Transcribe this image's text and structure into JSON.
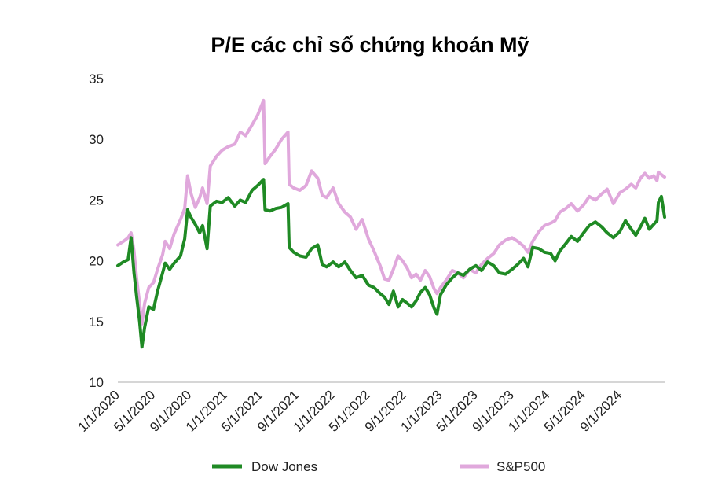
{
  "chart_data": {
    "type": "line",
    "title": "P/E các chỉ số chứng khoán Mỹ",
    "xlabel": "",
    "ylabel": "",
    "ylim": [
      10,
      35
    ],
    "y_ticks": [
      10,
      15,
      20,
      25,
      30,
      35
    ],
    "x_ticks": [
      "1/1/2020",
      "5/1/2020",
      "9/1/2020",
      "1/1/2021",
      "5/1/2021",
      "9/1/2021",
      "1/1/2022",
      "5/1/2022",
      "9/1/2022",
      "1/1/2023",
      "5/1/2023",
      "9/1/2023",
      "1/1/2024",
      "5/1/2024",
      "9/1/2024"
    ],
    "x_range": [
      "2020-01-01",
      "2025-01-31"
    ],
    "legend_position": "bottom",
    "grid": false,
    "series": [
      {
        "name": "Dow Jones",
        "color": "#1f8a24",
        "points": [
          [
            "2020-01-01",
            19.6
          ],
          [
            "2020-01-20",
            19.9
          ],
          [
            "2020-02-05",
            20.1
          ],
          [
            "2020-02-15",
            21.9
          ],
          [
            "2020-02-25",
            19.0
          ],
          [
            "2020-03-05",
            17.0
          ],
          [
            "2020-03-15",
            15.0
          ],
          [
            "2020-03-23",
            12.9
          ],
          [
            "2020-04-01",
            14.5
          ],
          [
            "2020-04-15",
            16.2
          ],
          [
            "2020-05-01",
            16.0
          ],
          [
            "2020-05-15",
            17.5
          ],
          [
            "2020-06-01",
            19.0
          ],
          [
            "2020-06-10",
            19.8
          ],
          [
            "2020-06-25",
            19.3
          ],
          [
            "2020-07-10",
            19.8
          ],
          [
            "2020-08-01",
            20.4
          ],
          [
            "2020-08-15",
            21.8
          ],
          [
            "2020-08-25",
            24.2
          ],
          [
            "2020-09-05",
            23.6
          ],
          [
            "2020-09-20",
            23.0
          ],
          [
            "2020-10-05",
            22.3
          ],
          [
            "2020-10-15",
            22.9
          ],
          [
            "2020-10-30",
            21.0
          ],
          [
            "2020-11-10",
            24.5
          ],
          [
            "2020-12-01",
            24.9
          ],
          [
            "2020-12-20",
            24.8
          ],
          [
            "2021-01-10",
            25.2
          ],
          [
            "2021-02-01",
            24.5
          ],
          [
            "2021-02-20",
            25.0
          ],
          [
            "2021-03-10",
            24.8
          ],
          [
            "2021-04-01",
            25.8
          ],
          [
            "2021-04-20",
            26.2
          ],
          [
            "2021-05-10",
            26.7
          ],
          [
            "2021-05-15",
            24.2
          ],
          [
            "2021-06-01",
            24.1
          ],
          [
            "2021-06-20",
            24.3
          ],
          [
            "2021-07-10",
            24.4
          ],
          [
            "2021-08-01",
            24.7
          ],
          [
            "2021-08-05",
            21.1
          ],
          [
            "2021-08-20",
            20.7
          ],
          [
            "2021-09-10",
            20.4
          ],
          [
            "2021-10-01",
            20.3
          ],
          [
            "2021-10-20",
            21.0
          ],
          [
            "2021-11-10",
            21.3
          ],
          [
            "2021-11-25",
            19.7
          ],
          [
            "2021-12-10",
            19.5
          ],
          [
            "2022-01-01",
            19.9
          ],
          [
            "2022-01-20",
            19.5
          ],
          [
            "2022-02-10",
            19.9
          ],
          [
            "2022-03-01",
            19.2
          ],
          [
            "2022-03-20",
            18.6
          ],
          [
            "2022-04-10",
            18.8
          ],
          [
            "2022-05-01",
            18.0
          ],
          [
            "2022-05-20",
            17.8
          ],
          [
            "2022-06-10",
            17.3
          ],
          [
            "2022-06-25",
            17.0
          ],
          [
            "2022-07-10",
            16.4
          ],
          [
            "2022-07-25",
            17.5
          ],
          [
            "2022-08-10",
            16.2
          ],
          [
            "2022-08-25",
            16.8
          ],
          [
            "2022-09-10",
            16.5
          ],
          [
            "2022-09-25",
            16.2
          ],
          [
            "2022-10-10",
            16.7
          ],
          [
            "2022-10-25",
            17.4
          ],
          [
            "2022-11-10",
            17.8
          ],
          [
            "2022-11-25",
            17.2
          ],
          [
            "2022-12-10",
            16.1
          ],
          [
            "2022-12-20",
            15.6
          ],
          [
            "2023-01-01",
            17.2
          ],
          [
            "2023-01-20",
            18.0
          ],
          [
            "2023-02-10",
            18.6
          ],
          [
            "2023-03-01",
            19.0
          ],
          [
            "2023-03-20",
            18.8
          ],
          [
            "2023-04-10",
            19.3
          ],
          [
            "2023-05-01",
            19.6
          ],
          [
            "2023-05-20",
            19.2
          ],
          [
            "2023-06-10",
            19.9
          ],
          [
            "2023-07-01",
            19.6
          ],
          [
            "2023-07-20",
            19.0
          ],
          [
            "2023-08-10",
            18.9
          ],
          [
            "2023-09-01",
            19.3
          ],
          [
            "2023-09-20",
            19.7
          ],
          [
            "2023-10-10",
            20.2
          ],
          [
            "2023-10-25",
            19.5
          ],
          [
            "2023-11-10",
            21.1
          ],
          [
            "2023-12-01",
            21.0
          ],
          [
            "2023-12-20",
            20.7
          ],
          [
            "2024-01-10",
            20.6
          ],
          [
            "2024-01-25",
            20.0
          ],
          [
            "2024-02-10",
            20.8
          ],
          [
            "2024-03-01",
            21.4
          ],
          [
            "2024-03-20",
            22.0
          ],
          [
            "2024-04-10",
            21.6
          ],
          [
            "2024-05-01",
            22.3
          ],
          [
            "2024-05-20",
            22.9
          ],
          [
            "2024-06-10",
            23.2
          ],
          [
            "2024-07-01",
            22.8
          ],
          [
            "2024-07-20",
            22.3
          ],
          [
            "2024-08-10",
            21.9
          ],
          [
            "2024-09-01",
            22.4
          ],
          [
            "2024-09-20",
            23.3
          ],
          [
            "2024-10-10",
            22.6
          ],
          [
            "2024-10-25",
            22.1
          ],
          [
            "2024-11-10",
            22.8
          ],
          [
            "2024-11-25",
            23.5
          ],
          [
            "2024-12-10",
            22.6
          ],
          [
            "2024-12-25",
            23.0
          ],
          [
            "2025-01-05",
            23.3
          ],
          [
            "2025-01-10",
            24.8
          ],
          [
            "2025-01-20",
            25.3
          ],
          [
            "2025-01-31",
            23.6
          ]
        ]
      },
      {
        "name": "S&P500",
        "color": "#e0a8dc",
        "points": [
          [
            "2020-01-01",
            21.3
          ],
          [
            "2020-01-20",
            21.6
          ],
          [
            "2020-02-05",
            21.9
          ],
          [
            "2020-02-15",
            22.3
          ],
          [
            "2020-02-25",
            20.8
          ],
          [
            "2020-03-05",
            18.5
          ],
          [
            "2020-03-15",
            16.5
          ],
          [
            "2020-03-23",
            14.8
          ],
          [
            "2020-04-01",
            16.5
          ],
          [
            "2020-04-15",
            17.8
          ],
          [
            "2020-05-01",
            18.2
          ],
          [
            "2020-05-15",
            19.3
          ],
          [
            "2020-06-01",
            20.5
          ],
          [
            "2020-06-10",
            21.6
          ],
          [
            "2020-06-25",
            21.0
          ],
          [
            "2020-07-10",
            22.2
          ],
          [
            "2020-08-01",
            23.4
          ],
          [
            "2020-08-15",
            24.3
          ],
          [
            "2020-08-25",
            27.0
          ],
          [
            "2020-09-05",
            25.6
          ],
          [
            "2020-09-20",
            24.4
          ],
          [
            "2020-10-05",
            25.2
          ],
          [
            "2020-10-15",
            26.0
          ],
          [
            "2020-10-30",
            24.7
          ],
          [
            "2020-11-10",
            27.8
          ],
          [
            "2020-12-01",
            28.6
          ],
          [
            "2020-12-20",
            29.1
          ],
          [
            "2021-01-10",
            29.4
          ],
          [
            "2021-02-01",
            29.6
          ],
          [
            "2021-02-20",
            30.6
          ],
          [
            "2021-03-10",
            30.3
          ],
          [
            "2021-04-01",
            31.2
          ],
          [
            "2021-04-20",
            32.0
          ],
          [
            "2021-05-10",
            33.2
          ],
          [
            "2021-05-15",
            28.0
          ],
          [
            "2021-06-01",
            28.6
          ],
          [
            "2021-06-20",
            29.2
          ],
          [
            "2021-07-10",
            30.0
          ],
          [
            "2021-08-01",
            30.6
          ],
          [
            "2021-08-05",
            26.3
          ],
          [
            "2021-08-20",
            26.0
          ],
          [
            "2021-09-10",
            25.8
          ],
          [
            "2021-10-01",
            26.2
          ],
          [
            "2021-10-20",
            27.4
          ],
          [
            "2021-11-10",
            26.8
          ],
          [
            "2021-11-25",
            25.4
          ],
          [
            "2021-12-10",
            25.2
          ],
          [
            "2022-01-01",
            26.0
          ],
          [
            "2022-01-20",
            24.7
          ],
          [
            "2022-02-10",
            24.0
          ],
          [
            "2022-03-01",
            23.6
          ],
          [
            "2022-03-20",
            22.6
          ],
          [
            "2022-04-10",
            23.4
          ],
          [
            "2022-05-01",
            21.8
          ],
          [
            "2022-05-20",
            20.8
          ],
          [
            "2022-06-10",
            19.6
          ],
          [
            "2022-06-25",
            18.5
          ],
          [
            "2022-07-10",
            18.4
          ],
          [
            "2022-07-25",
            19.3
          ],
          [
            "2022-08-10",
            20.4
          ],
          [
            "2022-08-25",
            20.0
          ],
          [
            "2022-09-10",
            19.4
          ],
          [
            "2022-09-25",
            18.6
          ],
          [
            "2022-10-10",
            18.9
          ],
          [
            "2022-10-25",
            18.4
          ],
          [
            "2022-11-10",
            19.2
          ],
          [
            "2022-11-25",
            18.7
          ],
          [
            "2022-12-10",
            17.7
          ],
          [
            "2022-12-20",
            17.3
          ],
          [
            "2023-01-01",
            17.8
          ],
          [
            "2023-01-20",
            18.4
          ],
          [
            "2023-02-10",
            19.2
          ],
          [
            "2023-03-01",
            19.0
          ],
          [
            "2023-03-20",
            18.6
          ],
          [
            "2023-04-10",
            19.3
          ],
          [
            "2023-05-01",
            19.0
          ],
          [
            "2023-05-20",
            19.7
          ],
          [
            "2023-06-10",
            20.2
          ],
          [
            "2023-07-01",
            20.6
          ],
          [
            "2023-07-20",
            21.3
          ],
          [
            "2023-08-10",
            21.7
          ],
          [
            "2023-09-01",
            21.9
          ],
          [
            "2023-09-20",
            21.6
          ],
          [
            "2023-10-10",
            21.2
          ],
          [
            "2023-10-25",
            20.7
          ],
          [
            "2023-11-10",
            21.6
          ],
          [
            "2023-12-01",
            22.4
          ],
          [
            "2023-12-20",
            22.9
          ],
          [
            "2024-01-10",
            23.1
          ],
          [
            "2024-01-25",
            23.3
          ],
          [
            "2024-02-10",
            24.0
          ],
          [
            "2024-03-01",
            24.3
          ],
          [
            "2024-03-20",
            24.7
          ],
          [
            "2024-04-10",
            24.1
          ],
          [
            "2024-05-01",
            24.6
          ],
          [
            "2024-05-20",
            25.3
          ],
          [
            "2024-06-10",
            25.0
          ],
          [
            "2024-07-01",
            25.5
          ],
          [
            "2024-07-20",
            25.9
          ],
          [
            "2024-08-10",
            24.7
          ],
          [
            "2024-09-01",
            25.6
          ],
          [
            "2024-09-20",
            25.9
          ],
          [
            "2024-10-10",
            26.3
          ],
          [
            "2024-10-25",
            26.0
          ],
          [
            "2024-11-10",
            26.8
          ],
          [
            "2024-11-25",
            27.2
          ],
          [
            "2024-12-10",
            26.8
          ],
          [
            "2024-12-25",
            27.0
          ],
          [
            "2025-01-05",
            26.6
          ],
          [
            "2025-01-10",
            27.3
          ],
          [
            "2025-01-20",
            27.1
          ],
          [
            "2025-01-31",
            26.9
          ]
        ]
      }
    ]
  }
}
